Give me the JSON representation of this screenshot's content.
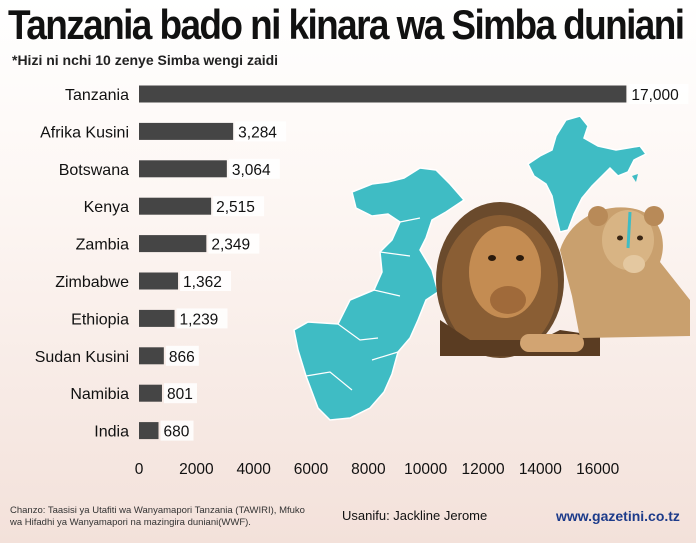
{
  "header": {
    "title": "Tanzania bado ni kinara wa Simba duniani",
    "subtitle": "*Hizi ni nchi 10 zenye Simba wengi zaidi"
  },
  "chart_data": {
    "type": "bar",
    "orientation": "horizontal",
    "categories": [
      "Tanzania",
      "Afrika Kusini",
      "Botswana",
      "Kenya",
      "Zambia",
      "Zimbabwe",
      "Ethiopia",
      "Sudan Kusini",
      "Namibia",
      "India"
    ],
    "values": [
      17000,
      3284,
      3064,
      2515,
      2349,
      1362,
      1239,
      866,
      801,
      680
    ],
    "value_labels": [
      "17,000",
      "3,284",
      "3,064",
      "2,515",
      "2,349",
      "1,362",
      "1,239",
      "866",
      "801",
      "680"
    ],
    "x_ticks": [
      0,
      2000,
      4000,
      6000,
      8000,
      10000,
      12000,
      14000,
      16000
    ],
    "xlim": [
      0,
      17500
    ],
    "bar_color": "#454545",
    "grid": false
  },
  "footer": {
    "source": "Chanzo: Taasisi ya Utafiti wa Wanyamapori Tanzania (TAWIRI), Mfuko wa Hifadhi ya Wanyamapori na mazingira duniani(WWF).",
    "author": "Usanifu: Jackline Jerome",
    "website": "www.gazetini.co.tz"
  },
  "colors": {
    "map": "#3fbcc4",
    "website": "#1d3b8a"
  }
}
